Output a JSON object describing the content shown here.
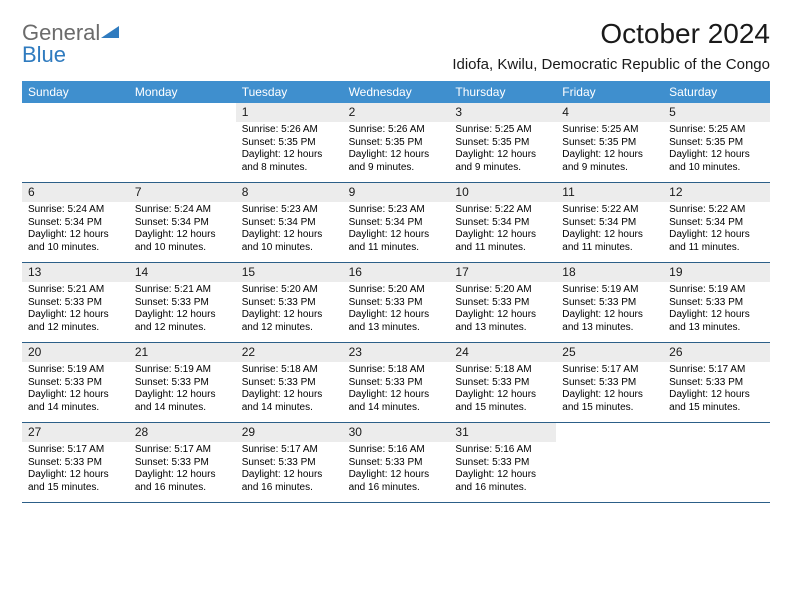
{
  "logo": {
    "text_gray": "General",
    "text_blue": "Blue"
  },
  "title": "October 2024",
  "location": "Idiofa, Kwilu, Democratic Republic of the Congo",
  "colors": {
    "header_bg": "#3f8fce",
    "header_fg": "#ffffff",
    "daynum_bg": "#ececec",
    "border": "#2c5f88",
    "logo_gray": "#6b6b6b",
    "logo_blue": "#2f7bbf"
  },
  "day_names": [
    "Sunday",
    "Monday",
    "Tuesday",
    "Wednesday",
    "Thursday",
    "Friday",
    "Saturday"
  ],
  "weeks": [
    [
      null,
      null,
      {
        "n": "1",
        "sr": "Sunrise: 5:26 AM",
        "ss": "Sunset: 5:35 PM",
        "dl": "Daylight: 12 hours and 8 minutes."
      },
      {
        "n": "2",
        "sr": "Sunrise: 5:26 AM",
        "ss": "Sunset: 5:35 PM",
        "dl": "Daylight: 12 hours and 9 minutes."
      },
      {
        "n": "3",
        "sr": "Sunrise: 5:25 AM",
        "ss": "Sunset: 5:35 PM",
        "dl": "Daylight: 12 hours and 9 minutes."
      },
      {
        "n": "4",
        "sr": "Sunrise: 5:25 AM",
        "ss": "Sunset: 5:35 PM",
        "dl": "Daylight: 12 hours and 9 minutes."
      },
      {
        "n": "5",
        "sr": "Sunrise: 5:25 AM",
        "ss": "Sunset: 5:35 PM",
        "dl": "Daylight: 12 hours and 10 minutes."
      }
    ],
    [
      {
        "n": "6",
        "sr": "Sunrise: 5:24 AM",
        "ss": "Sunset: 5:34 PM",
        "dl": "Daylight: 12 hours and 10 minutes."
      },
      {
        "n": "7",
        "sr": "Sunrise: 5:24 AM",
        "ss": "Sunset: 5:34 PM",
        "dl": "Daylight: 12 hours and 10 minutes."
      },
      {
        "n": "8",
        "sr": "Sunrise: 5:23 AM",
        "ss": "Sunset: 5:34 PM",
        "dl": "Daylight: 12 hours and 10 minutes."
      },
      {
        "n": "9",
        "sr": "Sunrise: 5:23 AM",
        "ss": "Sunset: 5:34 PM",
        "dl": "Daylight: 12 hours and 11 minutes."
      },
      {
        "n": "10",
        "sr": "Sunrise: 5:22 AM",
        "ss": "Sunset: 5:34 PM",
        "dl": "Daylight: 12 hours and 11 minutes."
      },
      {
        "n": "11",
        "sr": "Sunrise: 5:22 AM",
        "ss": "Sunset: 5:34 PM",
        "dl": "Daylight: 12 hours and 11 minutes."
      },
      {
        "n": "12",
        "sr": "Sunrise: 5:22 AM",
        "ss": "Sunset: 5:34 PM",
        "dl": "Daylight: 12 hours and 11 minutes."
      }
    ],
    [
      {
        "n": "13",
        "sr": "Sunrise: 5:21 AM",
        "ss": "Sunset: 5:33 PM",
        "dl": "Daylight: 12 hours and 12 minutes."
      },
      {
        "n": "14",
        "sr": "Sunrise: 5:21 AM",
        "ss": "Sunset: 5:33 PM",
        "dl": "Daylight: 12 hours and 12 minutes."
      },
      {
        "n": "15",
        "sr": "Sunrise: 5:20 AM",
        "ss": "Sunset: 5:33 PM",
        "dl": "Daylight: 12 hours and 12 minutes."
      },
      {
        "n": "16",
        "sr": "Sunrise: 5:20 AM",
        "ss": "Sunset: 5:33 PM",
        "dl": "Daylight: 12 hours and 13 minutes."
      },
      {
        "n": "17",
        "sr": "Sunrise: 5:20 AM",
        "ss": "Sunset: 5:33 PM",
        "dl": "Daylight: 12 hours and 13 minutes."
      },
      {
        "n": "18",
        "sr": "Sunrise: 5:19 AM",
        "ss": "Sunset: 5:33 PM",
        "dl": "Daylight: 12 hours and 13 minutes."
      },
      {
        "n": "19",
        "sr": "Sunrise: 5:19 AM",
        "ss": "Sunset: 5:33 PM",
        "dl": "Daylight: 12 hours and 13 minutes."
      }
    ],
    [
      {
        "n": "20",
        "sr": "Sunrise: 5:19 AM",
        "ss": "Sunset: 5:33 PM",
        "dl": "Daylight: 12 hours and 14 minutes."
      },
      {
        "n": "21",
        "sr": "Sunrise: 5:19 AM",
        "ss": "Sunset: 5:33 PM",
        "dl": "Daylight: 12 hours and 14 minutes."
      },
      {
        "n": "22",
        "sr": "Sunrise: 5:18 AM",
        "ss": "Sunset: 5:33 PM",
        "dl": "Daylight: 12 hours and 14 minutes."
      },
      {
        "n": "23",
        "sr": "Sunrise: 5:18 AM",
        "ss": "Sunset: 5:33 PM",
        "dl": "Daylight: 12 hours and 14 minutes."
      },
      {
        "n": "24",
        "sr": "Sunrise: 5:18 AM",
        "ss": "Sunset: 5:33 PM",
        "dl": "Daylight: 12 hours and 15 minutes."
      },
      {
        "n": "25",
        "sr": "Sunrise: 5:17 AM",
        "ss": "Sunset: 5:33 PM",
        "dl": "Daylight: 12 hours and 15 minutes."
      },
      {
        "n": "26",
        "sr": "Sunrise: 5:17 AM",
        "ss": "Sunset: 5:33 PM",
        "dl": "Daylight: 12 hours and 15 minutes."
      }
    ],
    [
      {
        "n": "27",
        "sr": "Sunrise: 5:17 AM",
        "ss": "Sunset: 5:33 PM",
        "dl": "Daylight: 12 hours and 15 minutes."
      },
      {
        "n": "28",
        "sr": "Sunrise: 5:17 AM",
        "ss": "Sunset: 5:33 PM",
        "dl": "Daylight: 12 hours and 16 minutes."
      },
      {
        "n": "29",
        "sr": "Sunrise: 5:17 AM",
        "ss": "Sunset: 5:33 PM",
        "dl": "Daylight: 12 hours and 16 minutes."
      },
      {
        "n": "30",
        "sr": "Sunrise: 5:16 AM",
        "ss": "Sunset: 5:33 PM",
        "dl": "Daylight: 12 hours and 16 minutes."
      },
      {
        "n": "31",
        "sr": "Sunrise: 5:16 AM",
        "ss": "Sunset: 5:33 PM",
        "dl": "Daylight: 12 hours and 16 minutes."
      },
      null,
      null
    ]
  ]
}
